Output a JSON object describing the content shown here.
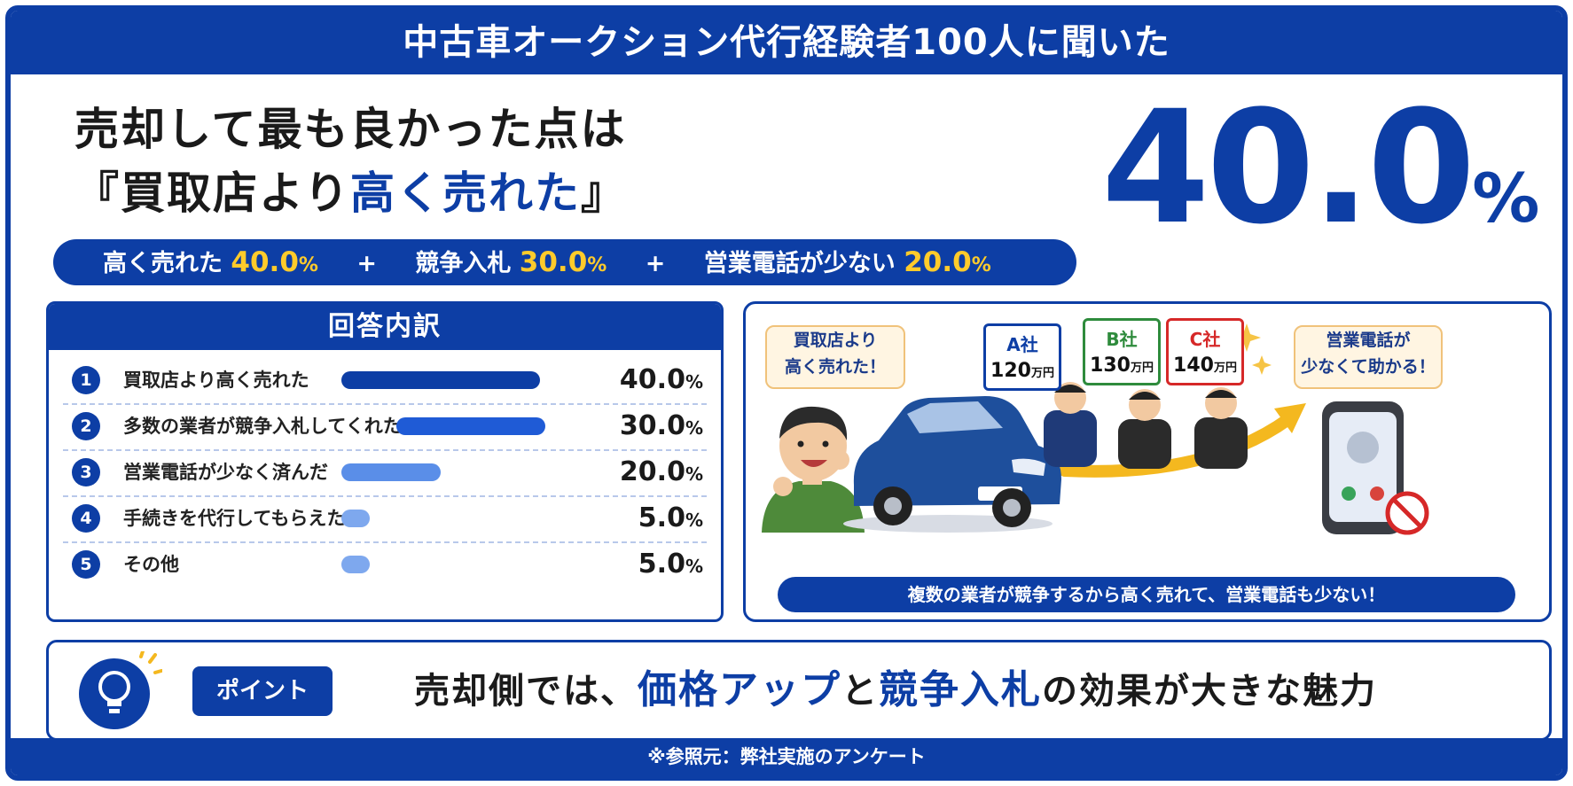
{
  "header": {
    "title": "中古車オークション代行経験者100人に聞いた"
  },
  "headline": {
    "line1": "売却して最も良かった点は",
    "open_bracket": "『",
    "l2_black": "買取店より",
    "l2_blue": "高く売れた",
    "close_bracket": "』"
  },
  "big_stat": {
    "number": "40.0",
    "percent_sign": "%"
  },
  "summary": {
    "items": [
      {
        "label": "高く売れた",
        "value": "40.0",
        "unit": "%"
      },
      {
        "label": "競争入札",
        "value": "30.0",
        "unit": "%"
      },
      {
        "label": "営業電話が少ない",
        "value": "20.0",
        "unit": "%"
      }
    ],
    "plus": "+"
  },
  "chart_data": {
    "type": "bar",
    "title": "回答内訳",
    "categories": [
      "買取店より高く売れた",
      "多数の業者が競争入札してくれた",
      "営業電話が少なく済んだ",
      "手続きを代行してもらえた",
      "その他"
    ],
    "ranks": [
      "1",
      "2",
      "3",
      "4",
      "5"
    ],
    "values": [
      40.0,
      30.0,
      20.0,
      5.0,
      5.0
    ],
    "value_labels": [
      "40.0",
      "30.0",
      "20.0",
      "5.0",
      "5.0"
    ],
    "unit": "%",
    "bar_colors": [
      "#0d3ea5",
      "#1f5bd6",
      "#5a8ee8",
      "#7ea8ee",
      "#7ea8ee"
    ],
    "xlim": [
      0,
      40
    ]
  },
  "illustration": {
    "bubble_left": [
      "買取店より",
      "高く売れた！"
    ],
    "bubble_right": [
      "営業電話が",
      "少なくて助かる！"
    ],
    "signs": [
      {
        "company": "A社",
        "price": "120",
        "unit": "万円",
        "color": "#0d3ea5"
      },
      {
        "company": "B社",
        "price": "130",
        "unit": "万円",
        "color": "#2e8b3c"
      },
      {
        "company": "C社",
        "price": "140",
        "unit": "万円",
        "color": "#d62828"
      }
    ],
    "caption": "複数の業者が競争するから高く売れて、営業電話も少ない！"
  },
  "point": {
    "tag": "ポイント",
    "msg_1": "売却側では、",
    "msg_blue_1": "価格アップ",
    "msg_2": "と",
    "msg_blue_2": "競争入札",
    "msg_3": "の効果が大きな魅力"
  },
  "footer": {
    "source": "※参照元：弊社実施のアンケート"
  }
}
